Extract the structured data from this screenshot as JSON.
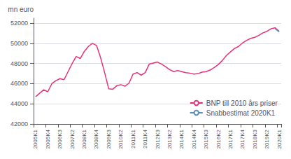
{
  "chart_data": {
    "type": "line",
    "ylabel": "mn euro",
    "categories": [
      "2005K1",
      null,
      null,
      "2005K4",
      null,
      null,
      "2006K3",
      null,
      null,
      "2007K2",
      null,
      null,
      "2008K1",
      null,
      null,
      "2008K4",
      null,
      null,
      "2009K3",
      null,
      null,
      "2010K2",
      null,
      null,
      "2011K1",
      null,
      null,
      "2011K4",
      null,
      null,
      "2012K3",
      null,
      null,
      "2013K2",
      null,
      null,
      "2014K1",
      null,
      null,
      "2014K4",
      null,
      null,
      "2015K3",
      null,
      null,
      "2016K2",
      null,
      null,
      "2017K1",
      null,
      null,
      "2017K4",
      null,
      null,
      "2018K3",
      null,
      null,
      "2019K2",
      null,
      null,
      "2020K1"
    ],
    "series": [
      {
        "name": "BNP till 2010 års priser",
        "color": "#e8317a",
        "values": [
          44700,
          45050,
          45400,
          45200,
          46000,
          46300,
          46500,
          46400,
          47200,
          48000,
          48700,
          48500,
          49200,
          49700,
          50000,
          49800,
          48600,
          47100,
          45500,
          45450,
          45800,
          45900,
          45750,
          46050,
          46950,
          47100,
          46850,
          47100,
          47950,
          48050,
          48150,
          47950,
          47700,
          47400,
          47200,
          47300,
          47200,
          47100,
          47050,
          46950,
          47000,
          47150,
          47200,
          47350,
          47600,
          47900,
          48300,
          48800,
          49150,
          49500,
          49700,
          50050,
          50300,
          50500,
          50600,
          50800,
          51050,
          51200,
          51450,
          51550,
          51200
        ]
      },
      {
        "name": "Snabbestimat 2020K1",
        "color": "#5b8db8",
        "values": [
          null,
          null,
          null,
          null,
          null,
          null,
          null,
          null,
          null,
          null,
          null,
          null,
          null,
          null,
          null,
          null,
          null,
          null,
          null,
          null,
          null,
          null,
          null,
          null,
          null,
          null,
          null,
          null,
          null,
          null,
          null,
          null,
          null,
          null,
          null,
          null,
          null,
          null,
          null,
          null,
          null,
          null,
          null,
          null,
          null,
          null,
          null,
          null,
          null,
          null,
          null,
          null,
          null,
          null,
          null,
          null,
          null,
          null,
          null,
          51450,
          51150
        ]
      }
    ],
    "ylim": [
      42000,
      52500
    ],
    "yticks": [
      42000,
      44000,
      46000,
      48000,
      50000,
      52000
    ],
    "grid": true,
    "legend": "lower right"
  }
}
